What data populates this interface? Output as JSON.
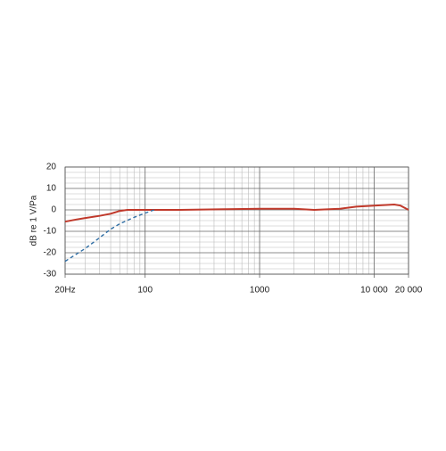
{
  "chart_data": {
    "type": "line",
    "y_label": "dB re 1 V/Pa",
    "log_x": true,
    "grid": true,
    "xlim": [
      20,
      20000
    ],
    "ylim": [
      -30,
      20
    ],
    "xticks": [
      {
        "value": 20,
        "label": "20Hz"
      },
      100,
      1000,
      {
        "value": 10000,
        "label": "10 000"
      },
      {
        "value": 20000,
        "label": "20 000"
      }
    ],
    "yticks": [
      -30,
      -20,
      -10,
      0,
      10,
      20
    ],
    "xminorticks": [
      30,
      40,
      50,
      60,
      70,
      80,
      90,
      200,
      300,
      400,
      500,
      600,
      700,
      800,
      900,
      2000,
      3000,
      4000,
      5000,
      6000,
      7000,
      8000,
      9000
    ],
    "yminorticks": [
      -27.5,
      -25,
      -22.5,
      -17.5,
      -15,
      -12.5,
      -7.5,
      -5,
      -2.5,
      2.5,
      5,
      7.5,
      12.5,
      15,
      17.5
    ],
    "series": [
      {
        "color": "#c0392b",
        "dashed": false,
        "x": [
          20,
          25,
          30,
          40,
          50,
          60,
          70,
          100,
          200,
          500,
          1000,
          2000,
          3000,
          5000,
          7000,
          10000,
          15000,
          17000,
          20000
        ],
        "values": [
          -5.5,
          -4.5,
          -3.8,
          -2.8,
          -1.8,
          -0.5,
          0,
          0,
          0,
          0.3,
          0.5,
          0.5,
          0,
          0.5,
          1.5,
          2,
          2.5,
          2,
          0
        ]
      },
      {
        "color": "#2e6da4",
        "dashed": true,
        "x": [
          20,
          30,
          40,
          50,
          60,
          80,
          100,
          120
        ],
        "values": [
          -24,
          -18,
          -13,
          -9,
          -6.5,
          -3.5,
          -1.5,
          0
        ]
      }
    ]
  }
}
